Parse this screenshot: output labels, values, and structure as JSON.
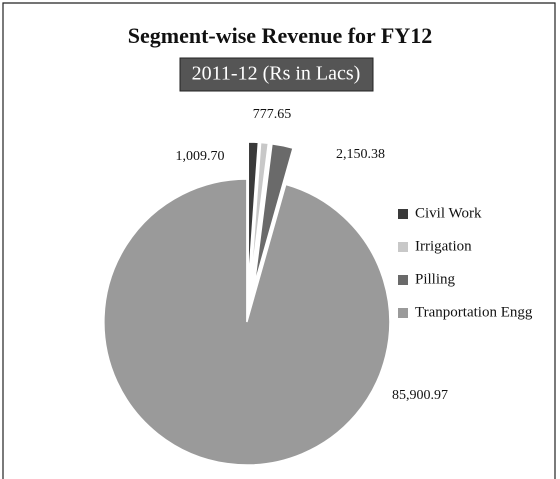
{
  "chart_data": {
    "type": "pie",
    "title": "Segment-wise Revenue for FY12",
    "subtitle": "2011-12 (Rs in Lacs)",
    "categories": [
      "Civil Work",
      "Irrigation",
      "Pilling",
      "Tranportation Engg"
    ],
    "values": [
      1009.7,
      777.65,
      2150.38,
      85900.97
    ],
    "value_labels": [
      "1,009.70",
      "777.65",
      "2,150.38",
      "85,900.97"
    ],
    "colors": [
      "#3a3a3a",
      "#c8c8c8",
      "#6a6a6a",
      "#9a9a9a"
    ],
    "legend": "right"
  }
}
